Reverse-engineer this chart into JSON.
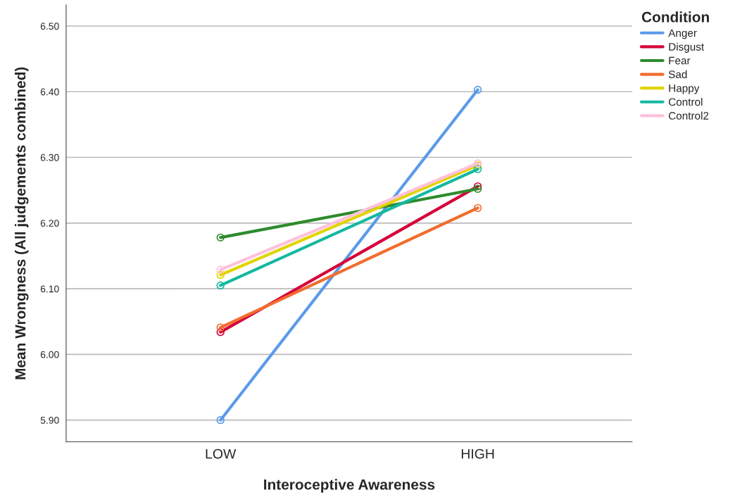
{
  "chart_data": {
    "type": "line",
    "xlabel": "Interoceptive Awareness",
    "ylabel": "Mean Wrongness (All judgements combined)",
    "legend_title": "Condition",
    "categories": [
      "LOW",
      "HIGH"
    ],
    "series": [
      {
        "name": "Anger",
        "color": "#5b9be8",
        "values": [
          5.9,
          6.403
        ]
      },
      {
        "name": "Disgust",
        "color": "#d6003a",
        "values": [
          6.034,
          6.256
        ]
      },
      {
        "name": "Fear",
        "color": "#2e8b2e",
        "values": [
          6.178,
          6.252
        ]
      },
      {
        "name": "Sad",
        "color": "#f26c2e",
        "values": [
          6.041,
          6.223
        ]
      },
      {
        "name": "Happy",
        "color": "#e0d400",
        "values": [
          6.121,
          6.288
        ]
      },
      {
        "name": "Control",
        "color": "#14b8a0",
        "values": [
          6.105,
          6.282
        ]
      },
      {
        "name": "Control2",
        "color": "#ffc0dc",
        "values": [
          6.129,
          6.291
        ]
      }
    ],
    "ylim": [
      5.867,
      6.532
    ],
    "yticks": [
      {
        "value": 5.9,
        "label": "5.90"
      },
      {
        "value": 6.0,
        "label": "6.00"
      },
      {
        "value": 6.1,
        "label": "6.10"
      },
      {
        "value": 6.2,
        "label": "6.20"
      },
      {
        "value": 6.3,
        "label": "6.30"
      },
      {
        "value": 6.4,
        "label": "6.40"
      },
      {
        "value": 6.5,
        "label": "6.50"
      }
    ],
    "grid": "y",
    "legend": "right",
    "marker": "circle",
    "line_style": "solid"
  }
}
